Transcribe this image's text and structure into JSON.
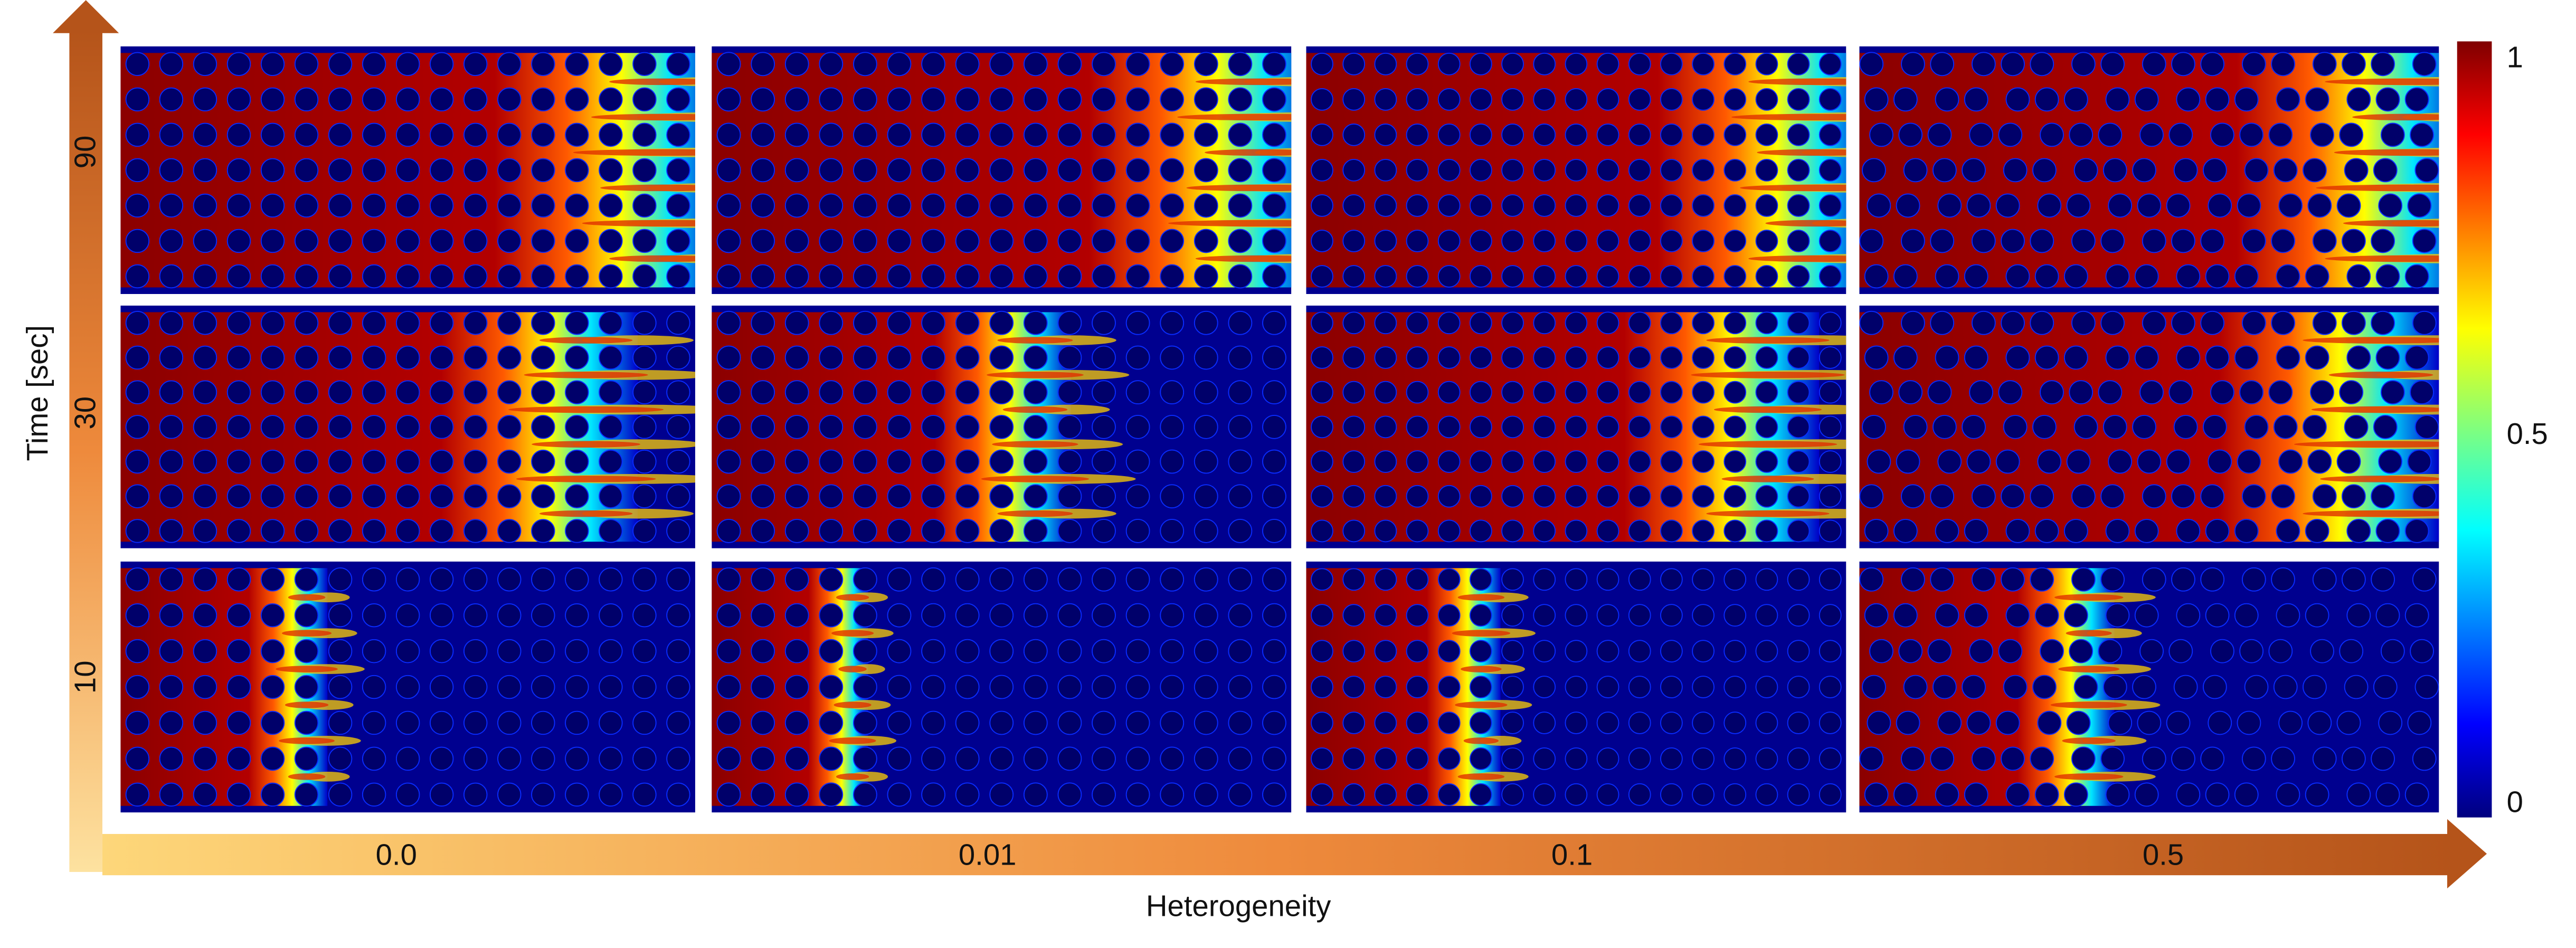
{
  "y_axis": {
    "label": "Time [sec]",
    "rows": [
      "90",
      "30",
      "10"
    ]
  },
  "x_axis": {
    "label": "Heterogeneity",
    "columns": [
      "0.0",
      "0.01",
      "0.1",
      "0.5"
    ]
  },
  "colorbar": {
    "ticks": [
      "1",
      "0.5",
      "0"
    ]
  }
}
